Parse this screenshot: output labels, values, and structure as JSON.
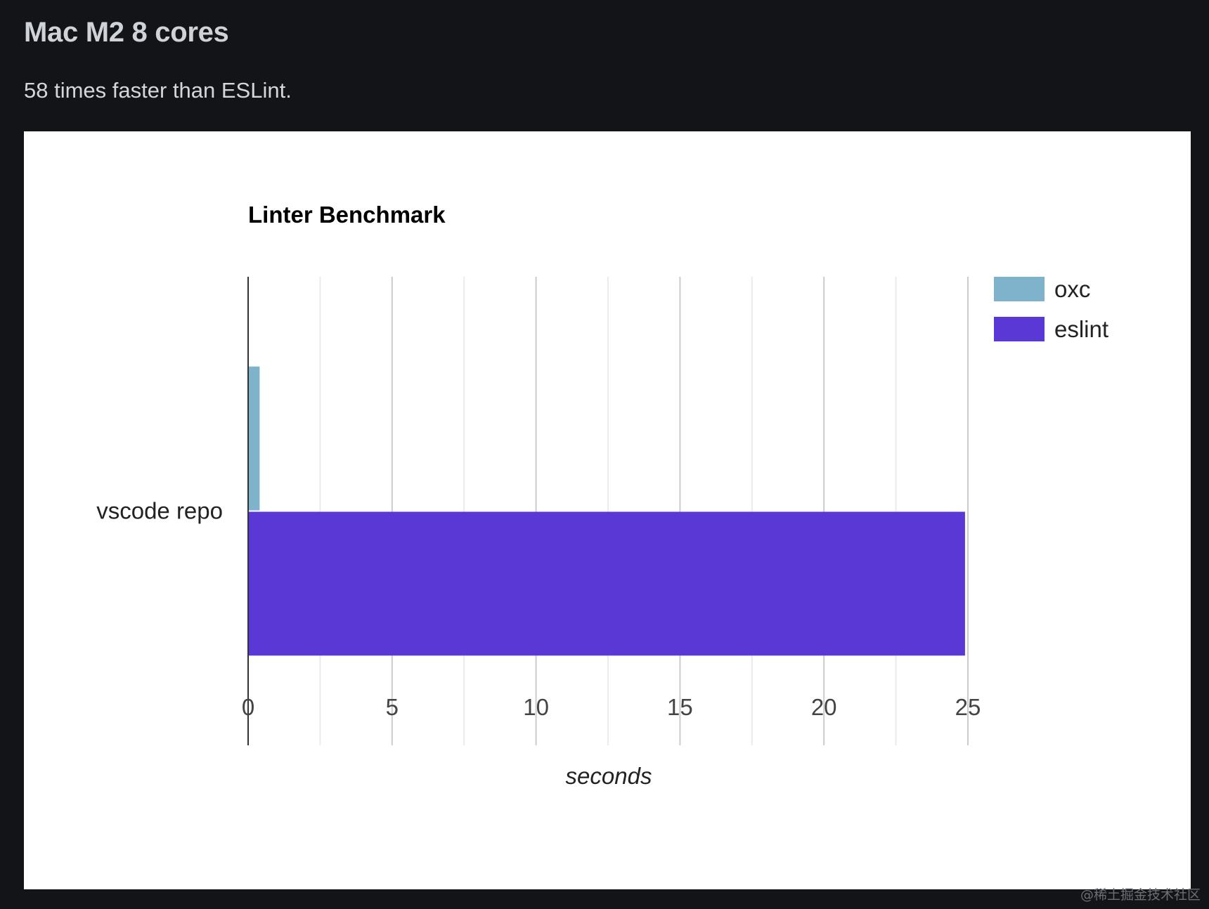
{
  "heading": "Mac M2 8 cores",
  "subtitle": "58 times faster than ESLint.",
  "watermark": "@稀土掘金技术社区",
  "chart_data": {
    "type": "bar",
    "orientation": "horizontal",
    "title": "Linter Benchmark",
    "xlabel": "seconds",
    "ylabel": "",
    "xlim": [
      0,
      25
    ],
    "x_ticks": [
      0,
      5,
      10,
      15,
      20,
      25
    ],
    "grid": true,
    "legend_position": "top-right",
    "categories": [
      "vscode repo"
    ],
    "series": [
      {
        "name": "oxc",
        "color": "#7fb3cc",
        "values": [
          0.4
        ]
      },
      {
        "name": "eslint",
        "color": "#5a38d6",
        "values": [
          24.9
        ]
      }
    ]
  }
}
